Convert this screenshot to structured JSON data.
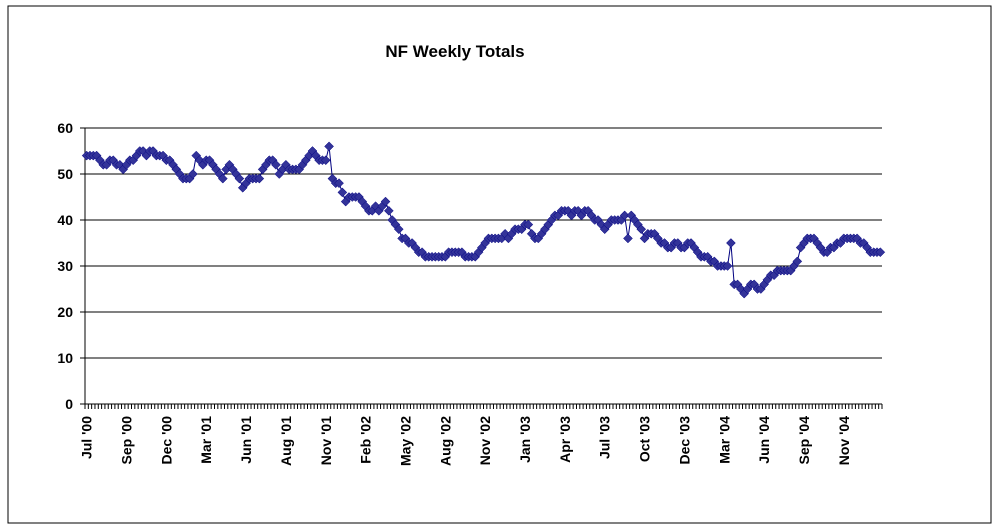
{
  "chart_data": {
    "type": "line",
    "title": "NF Weekly Totals",
    "categories": [
      "Jul '00",
      null,
      null,
      null,
      null,
      null,
      null,
      null,
      null,
      null,
      null,
      null,
      "Sep '00",
      null,
      null,
      null,
      null,
      null,
      null,
      null,
      null,
      null,
      null,
      null,
      "Dec '00",
      null,
      null,
      null,
      null,
      null,
      null,
      null,
      null,
      null,
      null,
      null,
      "Mar '01",
      null,
      null,
      null,
      null,
      null,
      null,
      null,
      null,
      null,
      null,
      null,
      "Jun '01",
      null,
      null,
      null,
      null,
      null,
      null,
      null,
      null,
      null,
      null,
      null,
      "Aug '01",
      null,
      null,
      null,
      null,
      null,
      null,
      null,
      null,
      null,
      null,
      null,
      "Nov '01",
      null,
      null,
      null,
      null,
      null,
      null,
      null,
      null,
      null,
      null,
      null,
      "Feb '02",
      null,
      null,
      null,
      null,
      null,
      null,
      null,
      null,
      null,
      null,
      null,
      "May '02",
      null,
      null,
      null,
      null,
      null,
      null,
      null,
      null,
      null,
      null,
      null,
      "Aug '02",
      null,
      null,
      null,
      null,
      null,
      null,
      null,
      null,
      null,
      null,
      null,
      "Nov '02",
      null,
      null,
      null,
      null,
      null,
      null,
      null,
      null,
      null,
      null,
      null,
      "Jan '03",
      null,
      null,
      null,
      null,
      null,
      null,
      null,
      null,
      null,
      null,
      null,
      "Apr '03",
      null,
      null,
      null,
      null,
      null,
      null,
      null,
      null,
      null,
      null,
      null,
      "Jul '03",
      null,
      null,
      null,
      null,
      null,
      null,
      null,
      null,
      null,
      null,
      null,
      "Oct '03",
      null,
      null,
      null,
      null,
      null,
      null,
      null,
      null,
      null,
      null,
      null,
      "Dec '03",
      null,
      null,
      null,
      null,
      null,
      null,
      null,
      null,
      null,
      null,
      null,
      "Mar '04",
      null,
      null,
      null,
      null,
      null,
      null,
      null,
      null,
      null,
      null,
      null,
      "Jun '04",
      null,
      null,
      null,
      null,
      null,
      null,
      null,
      null,
      null,
      null,
      null,
      "Sep '04",
      null,
      null,
      null,
      null,
      null,
      null,
      null,
      null,
      null,
      null,
      null,
      "Nov '04",
      null,
      null,
      null,
      null,
      null,
      null,
      null,
      null,
      null,
      null,
      null
    ],
    "series": [
      {
        "name": "NF",
        "color": "#000080",
        "marker_color": "#333399",
        "values": [
          54,
          54,
          54,
          54,
          53,
          52,
          52,
          53,
          53,
          52,
          52,
          51,
          52,
          53,
          53,
          54,
          55,
          55,
          54,
          55,
          55,
          54,
          54,
          54,
          53,
          53,
          52,
          51,
          50,
          49,
          49,
          49,
          50,
          54,
          53,
          52,
          53,
          53,
          52,
          51,
          50,
          49,
          51,
          52,
          51,
          50,
          49,
          47,
          48,
          49,
          49,
          49,
          49,
          51,
          52,
          53,
          53,
          52,
          50,
          51,
          52,
          51,
          51,
          51,
          51,
          52,
          53,
          54,
          55,
          54,
          53,
          53,
          53,
          56,
          49,
          48,
          48,
          46,
          44,
          45,
          45,
          45,
          45,
          44,
          43,
          42,
          42,
          43,
          42,
          43,
          44,
          42,
          40,
          39,
          38,
          36,
          36,
          35,
          35,
          34,
          33,
          33,
          32,
          32,
          32,
          32,
          32,
          32,
          32,
          33,
          33,
          33,
          33,
          33,
          32,
          32,
          32,
          32,
          33,
          34,
          35,
          36,
          36,
          36,
          36,
          36,
          37,
          36,
          37,
          38,
          38,
          38,
          39,
          39,
          37,
          36,
          36,
          37,
          38,
          39,
          40,
          41,
          41,
          42,
          42,
          42,
          41,
          42,
          42,
          41,
          42,
          42,
          41,
          40,
          40,
          39,
          38,
          39,
          40,
          40,
          40,
          40,
          41,
          36,
          41,
          40,
          39,
          38,
          36,
          37,
          37,
          37,
          36,
          35,
          35,
          34,
          34,
          35,
          35,
          34,
          34,
          35,
          35,
          34,
          33,
          32,
          32,
          32,
          31,
          31,
          30,
          30,
          30,
          30,
          35,
          26,
          26,
          25,
          24,
          25,
          26,
          26,
          25,
          25,
          26,
          27,
          28,
          28,
          29,
          29,
          29,
          29,
          29,
          30,
          31,
          34,
          35,
          36,
          36,
          36,
          35,
          34,
          33,
          33,
          34,
          34,
          35,
          35,
          36,
          36,
          36,
          36,
          36,
          35,
          35,
          34,
          33,
          33,
          33,
          33
        ]
      }
    ],
    "ylim": [
      0,
      60
    ],
    "yticks": [
      0,
      10,
      20,
      30,
      40,
      50,
      60
    ],
    "grid": true
  }
}
